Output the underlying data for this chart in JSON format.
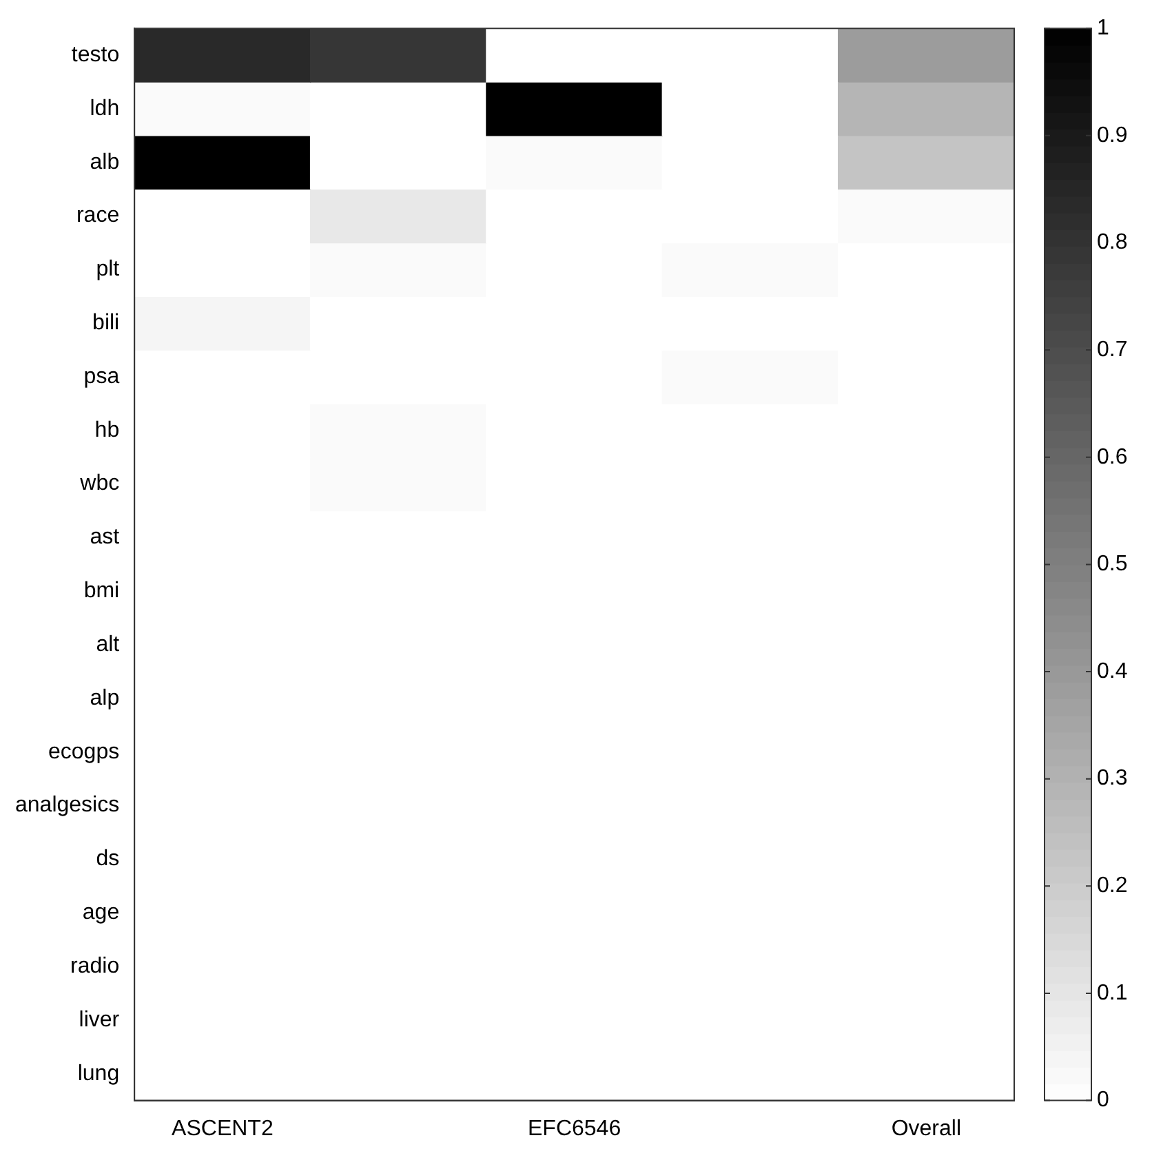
{
  "chart_data": {
    "type": "heatmap",
    "categories": [
      "ASCENT2",
      null,
      "EFC6546",
      null,
      "Overall"
    ],
    "y_categories": [
      "testo",
      "ldh",
      "alb",
      "race",
      "plt",
      "bili",
      "psa",
      "hb",
      "wbc",
      "ast",
      "bmi",
      "alt",
      "alp",
      "ecogps",
      "analgesics",
      "ds",
      "age",
      "radio",
      "liver",
      "lung"
    ],
    "cells": [
      [
        0.84,
        0.79,
        0,
        0,
        0.39
      ],
      [
        0.02,
        0,
        1,
        0,
        0.29
      ],
      [
        1,
        0,
        0.02,
        0,
        0.23
      ],
      [
        0,
        0.09,
        0,
        0,
        0.02
      ],
      [
        0,
        0.02,
        0,
        0.02,
        0
      ],
      [
        0.04,
        0,
        0,
        0,
        0
      ],
      [
        0,
        0,
        0,
        0.02,
        0
      ],
      [
        0,
        0.02,
        0,
        0,
        0
      ],
      [
        0,
        0.02,
        0,
        0,
        0
      ],
      [
        0,
        0,
        0,
        0,
        0
      ],
      [
        0,
        0,
        0,
        0,
        0
      ],
      [
        0,
        0,
        0,
        0,
        0
      ],
      [
        0,
        0,
        0,
        0,
        0
      ],
      [
        0,
        0,
        0,
        0,
        0
      ],
      [
        0,
        0,
        0,
        0,
        0
      ],
      [
        0,
        0,
        0,
        0,
        0
      ],
      [
        0,
        0,
        0,
        0,
        0
      ],
      [
        0,
        0,
        0,
        0,
        0
      ],
      [
        0,
        0,
        0,
        0,
        0
      ],
      [
        0,
        0,
        0,
        0,
        0
      ]
    ],
    "clim": [
      0,
      1
    ],
    "cticks": [
      0,
      0.1,
      0.2,
      0.3,
      0.4,
      0.5,
      0.6,
      0.7,
      0.8,
      0.9,
      1
    ]
  }
}
